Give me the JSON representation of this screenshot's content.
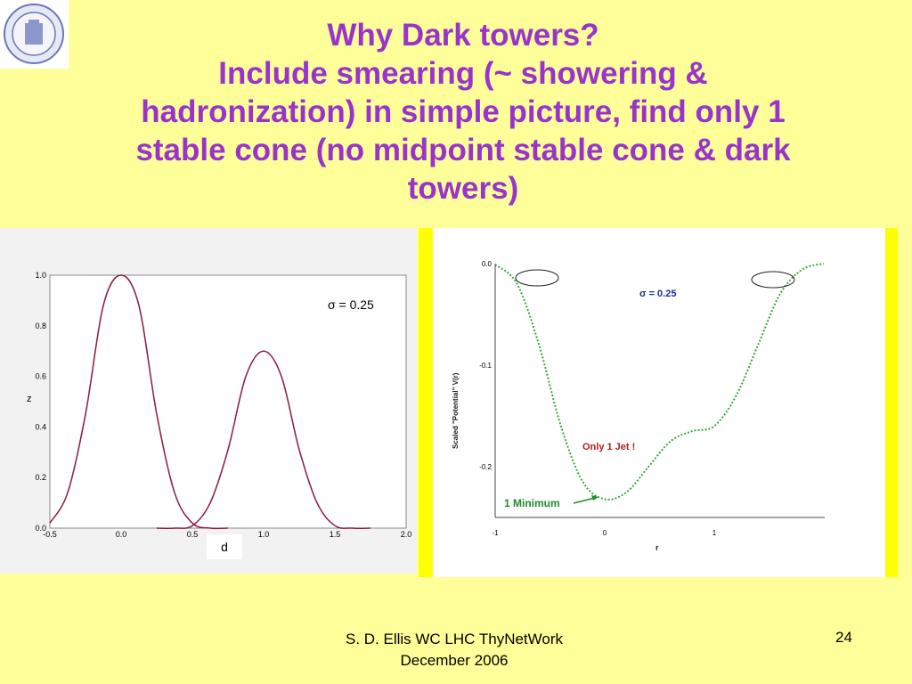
{
  "title_lines": [
    "Why Dark towers?",
    "Include smearing (~ showering &",
    "hadronization) in simple picture, find only 1",
    "stable cone (no midpoint stable cone & dark",
    "towers)"
  ],
  "left_chart": {
    "ylabel": "z",
    "xlabel": "d",
    "annotation": "σ = 0.25",
    "x_ticks": [
      "-0.5",
      "0.0",
      "0.5",
      "1.0",
      "1.5",
      "2.0"
    ],
    "y_ticks": [
      "0.0",
      "0.2",
      "0.4",
      "0.6",
      "0.8",
      "1.0"
    ]
  },
  "right_chart": {
    "ylabel": "Scaled \"Potential\" V(r)",
    "xlabel": "r",
    "annotation": "σ = 0.25",
    "jet_note": "Only 1 Jet !",
    "minimum_note": "1 Minimum",
    "x_ticks": [
      "-1",
      "0",
      "1"
    ],
    "y_ticks": [
      "0.0",
      "-0.1",
      "-0.2"
    ]
  },
  "chart_data": [
    {
      "type": "line",
      "xlabel": "",
      "ylabel": "z",
      "xlim": [
        -0.5,
        2.0
      ],
      "ylim": [
        0.0,
        1.0
      ],
      "series": [
        {
          "x": [
            -0.5,
            -0.375,
            -0.25,
            -0.125,
            0.0,
            0.125,
            0.25,
            0.375,
            0.5,
            0.625,
            0.75
          ],
          "values": [
            0.02,
            0.14,
            0.45,
            0.88,
            1.0,
            0.88,
            0.45,
            0.14,
            0.02,
            0.0,
            0.0
          ]
        },
        {
          "x": [
            0.25,
            0.375,
            0.5,
            0.625,
            0.75,
            0.875,
            1.0,
            1.125,
            1.25,
            1.375,
            1.5,
            1.625,
            1.75
          ],
          "values": [
            0.0,
            0.0,
            0.01,
            0.1,
            0.31,
            0.6,
            0.7,
            0.6,
            0.31,
            0.1,
            0.01,
            0.0,
            0.0
          ]
        }
      ]
    },
    {
      "type": "line",
      "xlabel": "r",
      "ylabel": "Scaled \"Potential\" V(r)",
      "xlim": [
        -1.0,
        2.0
      ],
      "ylim": [
        -0.25,
        0.0
      ],
      "series": [
        {
          "x": [
            -1.0,
            -0.8,
            -0.6,
            -0.4,
            -0.2,
            0.0,
            0.2,
            0.4,
            0.6,
            0.8,
            1.0,
            1.2,
            1.4,
            1.6,
            1.8,
            2.0
          ],
          "values": [
            -0.001,
            -0.02,
            -0.08,
            -0.16,
            -0.215,
            -0.232,
            -0.225,
            -0.2,
            -0.175,
            -0.165,
            -0.16,
            -0.13,
            -0.08,
            -0.03,
            -0.006,
            0.0
          ]
        }
      ]
    }
  ],
  "footer": {
    "author": "S. D. Ellis   WC LHC ThyNetWork",
    "date": "December 2006",
    "page": "24"
  }
}
